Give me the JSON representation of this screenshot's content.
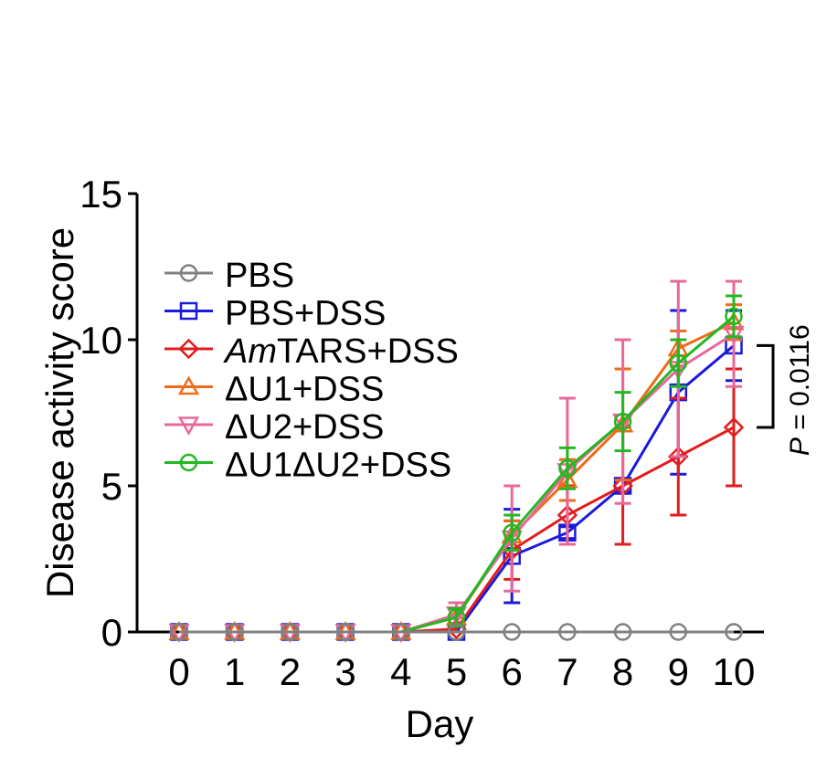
{
  "chart_data": {
    "type": "line",
    "title": "",
    "xlabel": "Day",
    "ylabel": "Disease activity score",
    "xlim": [
      0,
      10
    ],
    "ylim": [
      0,
      15
    ],
    "x": [
      0,
      1,
      2,
      3,
      4,
      5,
      6,
      7,
      8,
      9,
      10
    ],
    "x_ticks": [
      "0",
      "1",
      "2",
      "3",
      "4",
      "5",
      "6",
      "7",
      "8",
      "9",
      "10"
    ],
    "y_ticks": [
      "0",
      "5",
      "10",
      "15"
    ],
    "grid": false,
    "legend_position": "upper-left",
    "series": [
      {
        "name": "PBS",
        "name_parts": [
          {
            "text": "PBS",
            "italic": false
          }
        ],
        "color": "#808080",
        "marker": "circle",
        "values": [
          0,
          0,
          0,
          0,
          0,
          0,
          0,
          0,
          0,
          0,
          0
        ],
        "errors": [
          0,
          0,
          0,
          0,
          0,
          0,
          0,
          0,
          0,
          0,
          0
        ]
      },
      {
        "name": "PBS+DSS",
        "name_parts": [
          {
            "text": "PBS+DSS",
            "italic": false
          }
        ],
        "color": "#1a1adb",
        "marker": "square",
        "values": [
          0,
          0,
          0,
          0,
          0,
          0,
          2.6,
          3.4,
          5.0,
          8.2,
          9.8
        ],
        "errors": [
          0,
          0,
          0,
          0,
          0,
          0,
          1.6,
          0.2,
          0.2,
          2.8,
          1.2
        ]
      },
      {
        "name": "AmTARS+DSS",
        "name_parts": [
          {
            "text": "Am",
            "italic": true
          },
          {
            "text": "TARS+DSS",
            "italic": false
          }
        ],
        "color": "#e21c1c",
        "marker": "diamond",
        "values": [
          0,
          0,
          0,
          0,
          0,
          0.1,
          2.8,
          4.0,
          5.0,
          6.0,
          7.0
        ],
        "errors": [
          0,
          0,
          0,
          0,
          0,
          0.1,
          1.0,
          1.0,
          2.0,
          2.0,
          2.0
        ]
      },
      {
        "name": "ΔU1+DSS",
        "name_parts": [
          {
            "text": "ΔU1+DSS",
            "italic": false
          }
        ],
        "color": "#ef6b1a",
        "marker": "triangle-up",
        "values": [
          0,
          0,
          0,
          0,
          0,
          0.5,
          3.3,
          5.2,
          7.1,
          9.7,
          10.6
        ],
        "errors": [
          0,
          0,
          0,
          0,
          0,
          0.3,
          0.5,
          0.7,
          1.9,
          0.6,
          0.6
        ]
      },
      {
        "name": "ΔU2+DSS",
        "name_parts": [
          {
            "text": "ΔU2+DSS",
            "italic": false
          }
        ],
        "color": "#e8689a",
        "marker": "triangle-down",
        "values": [
          0,
          0,
          0,
          0,
          0,
          0.6,
          3.2,
          5.5,
          7.2,
          9.0,
          10.2
        ],
        "errors": [
          0,
          0,
          0,
          0,
          0,
          0.4,
          1.8,
          2.5,
          2.8,
          3.0,
          1.8
        ]
      },
      {
        "name": "ΔU1ΔU2+DSS",
        "name_parts": [
          {
            "text": "ΔU1ΔU2+DSS",
            "italic": false
          }
        ],
        "color": "#22b822",
        "marker": "circle",
        "values": [
          0,
          0,
          0,
          0,
          0,
          0.5,
          3.4,
          5.6,
          7.2,
          9.2,
          10.8
        ],
        "errors": [
          0,
          0,
          0,
          0,
          0,
          0.3,
          0.6,
          0.7,
          1.0,
          0.8,
          0.7
        ]
      }
    ],
    "annotations": [
      {
        "text": "P = 0.0116",
        "italic_part": "P",
        "between": [
          "PBS+DSS",
          "AmTARS+DSS"
        ],
        "at_x": 10
      }
    ]
  }
}
